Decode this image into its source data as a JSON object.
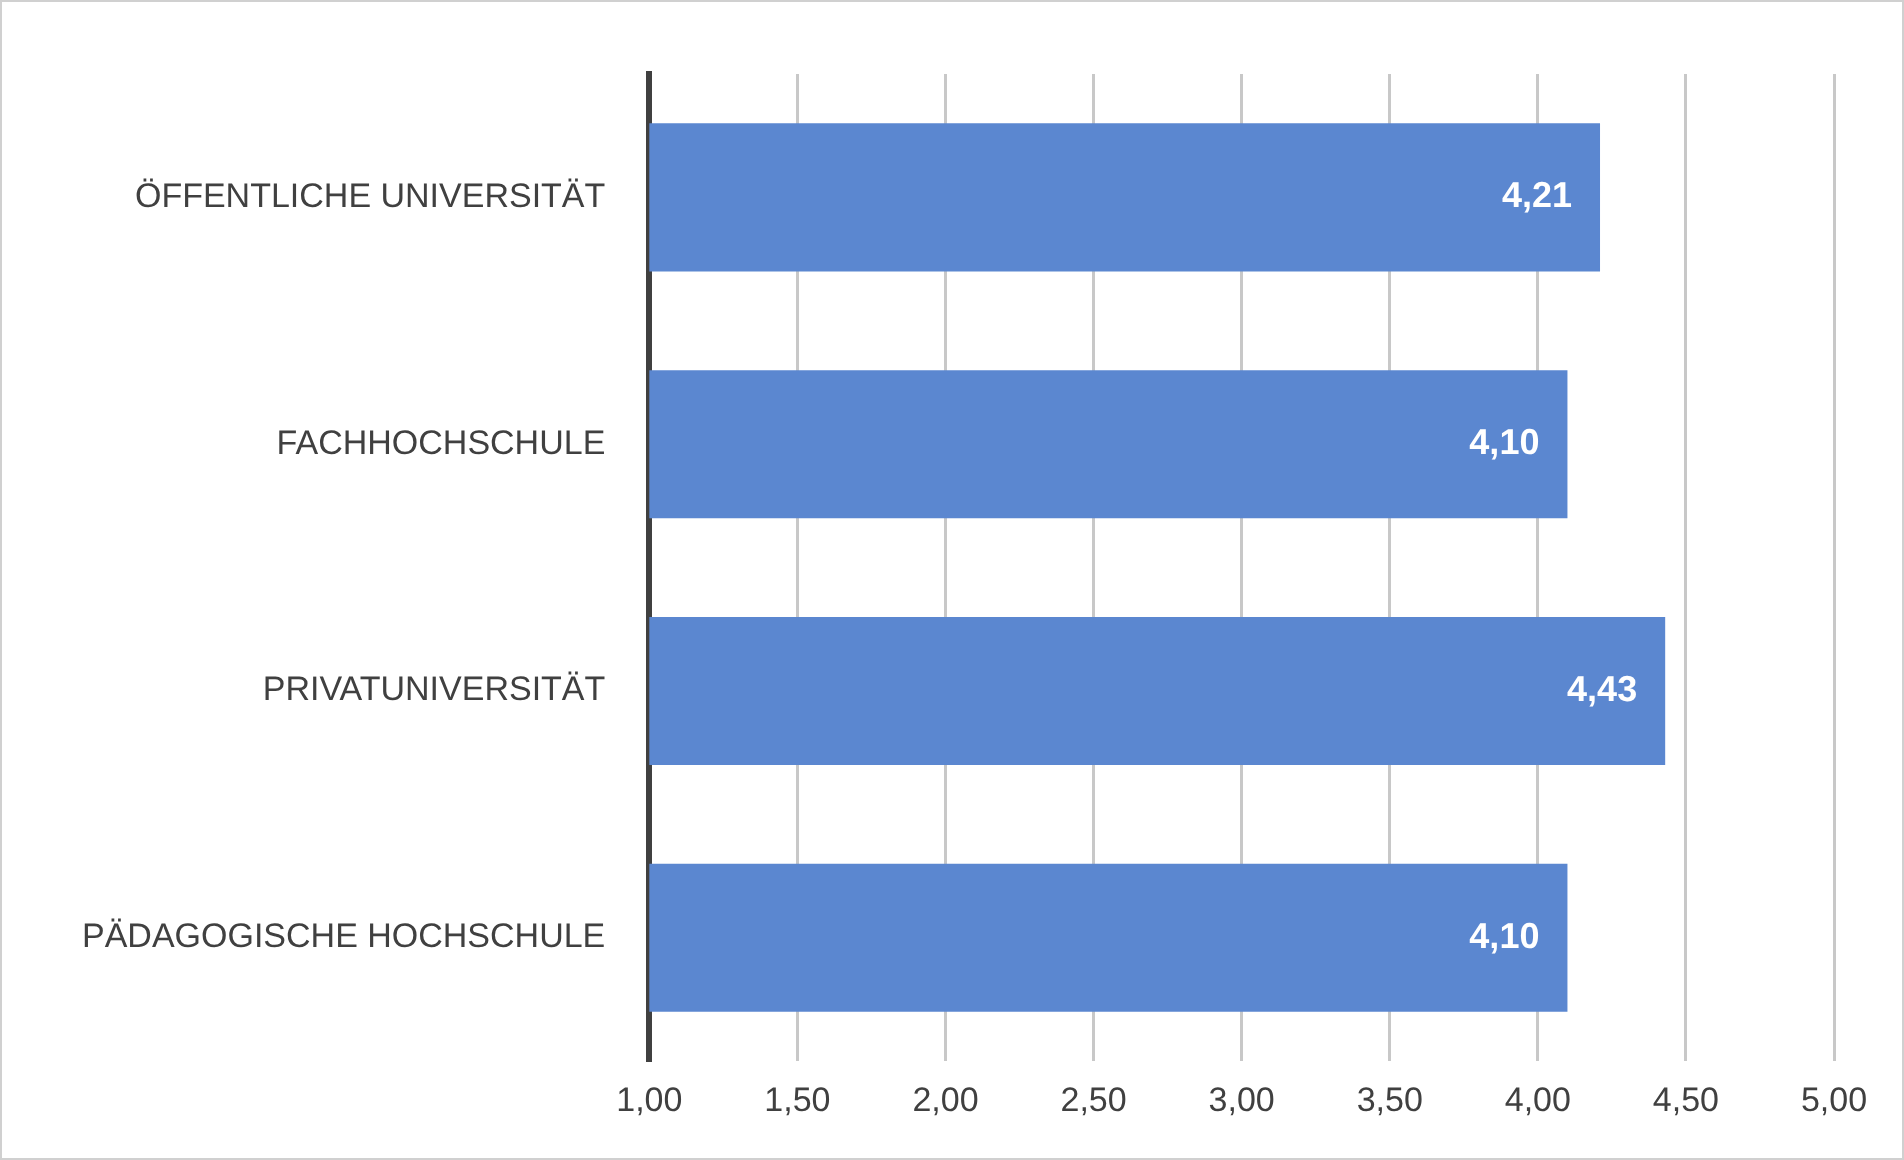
{
  "chart_data": {
    "type": "bar",
    "orientation": "horizontal",
    "categories": [
      "ÖFFENTLICHE UNIVERSITÄT",
      "FACHHOCHSCHULE",
      "PRIVATUNIVERSITÄT",
      "PÄDAGOGISCHE HOCHSCHULE"
    ],
    "values": [
      4.21,
      4.1,
      4.43,
      4.1
    ],
    "value_labels": [
      "4,21",
      "4,10",
      "4,43",
      "4,10"
    ],
    "color": "#5b87d0",
    "xlim": [
      1,
      5
    ],
    "xticks": [
      {
        "value": 1,
        "label": "1,00"
      },
      {
        "value": 1.5,
        "label": "1,50"
      },
      {
        "value": 2,
        "label": "2,00"
      },
      {
        "value": 2.5,
        "label": "2,50"
      },
      {
        "value": 3,
        "label": "3,00"
      },
      {
        "value": 3.5,
        "label": "3,50"
      },
      {
        "value": 4,
        "label": "4,00"
      },
      {
        "value": 4.5,
        "label": "4,50"
      },
      {
        "value": 5,
        "label": "5,00"
      }
    ],
    "grid": "x"
  }
}
